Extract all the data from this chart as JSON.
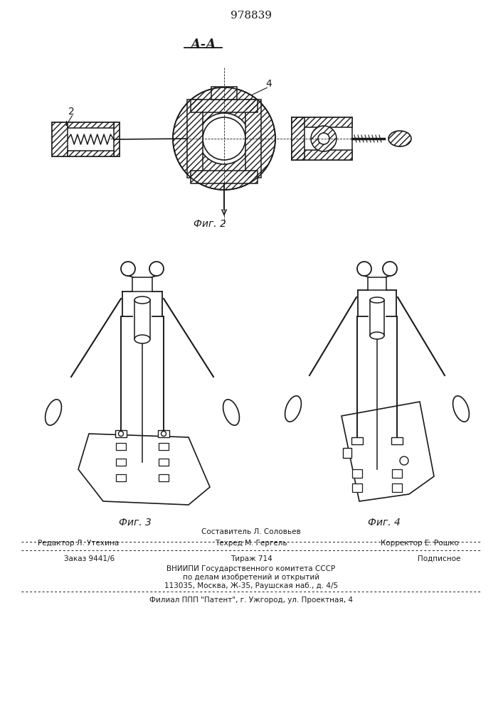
{
  "patent_number": "978839",
  "section_label": "А-А",
  "fig2_label": "Фиг. 2",
  "fig3_label": "Фиг. 3",
  "fig4_label": "Фиг. 4",
  "footer_line1_center": "Составитель Л. Соловьев",
  "footer_line2_left": "Редактор Л. Утехина",
  "footer_line2_center": "Техред М. Гергель",
  "footer_line2_right": "Корректор Е. Рошко",
  "footer_line3_left": "Заказ 9441/6",
  "footer_line3_center": "Тираж 714",
  "footer_line3_right": "Подписное",
  "footer_line4": "ВНИИПИ Государственного комитета СССР",
  "footer_line5": "по делам изобретений и открытий",
  "footer_line6": "113035, Москва, Ж-35, Раушская наб., д. 4/5",
  "footer_line7": "Филиал ППП \"Патент\", г. Ужгород, ул. Проектная, 4",
  "bg_color": "#ffffff",
  "line_color": "#1a1a1a"
}
